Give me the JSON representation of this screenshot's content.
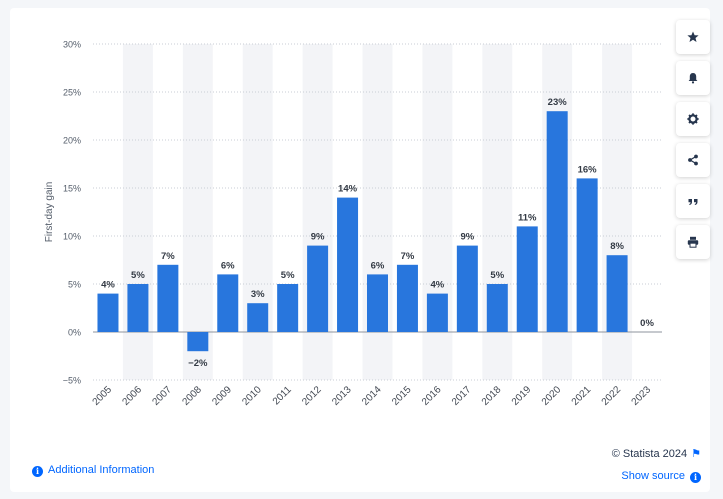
{
  "chart_data": {
    "type": "bar",
    "ylabel": "First-day gain",
    "categories": [
      "2005",
      "2006",
      "2007",
      "2008",
      "2009",
      "2010",
      "2011",
      "2012",
      "2013",
      "2014",
      "2015",
      "2016",
      "2017",
      "2018",
      "2019",
      "2020",
      "2021",
      "2022",
      "2023"
    ],
    "values": [
      4,
      5,
      7,
      -2,
      6,
      3,
      5,
      9,
      14,
      6,
      7,
      4,
      9,
      5,
      11,
      23,
      16,
      8,
      0
    ],
    "data_labels": [
      "4%",
      "5%",
      "7%",
      "−2%",
      "6%",
      "3%",
      "5%",
      "9%",
      "14%",
      "6%",
      "7%",
      "4%",
      "9%",
      "5%",
      "11%",
      "23%",
      "16%",
      "8%",
      "0%"
    ],
    "ylim": [
      -5,
      30
    ],
    "y_ticks": [
      -5,
      0,
      5,
      10,
      15,
      20,
      25,
      30
    ],
    "y_tick_labels": [
      "−5%",
      "0%",
      "5%",
      "10%",
      "15%",
      "20%",
      "25%",
      "30%"
    ],
    "grid": true,
    "bar_color": "#2876dd",
    "legend": "none"
  },
  "toolbar": [
    {
      "icon": "star-icon",
      "action": "favorite"
    },
    {
      "icon": "bell-icon",
      "action": "notification"
    },
    {
      "icon": "gear-icon",
      "action": "settings"
    },
    {
      "icon": "share-icon",
      "action": "share"
    },
    {
      "icon": "quote-icon",
      "action": "cite"
    },
    {
      "icon": "print-icon",
      "action": "print"
    }
  ],
  "footer": {
    "credit": "© Statista 2024",
    "show_source": "Show source",
    "additional_info": "Additional Information"
  },
  "colors": {
    "accent": "#0066ff",
    "bar": "#2876dd",
    "band": "#f3f4f7",
    "text": "#444444"
  }
}
